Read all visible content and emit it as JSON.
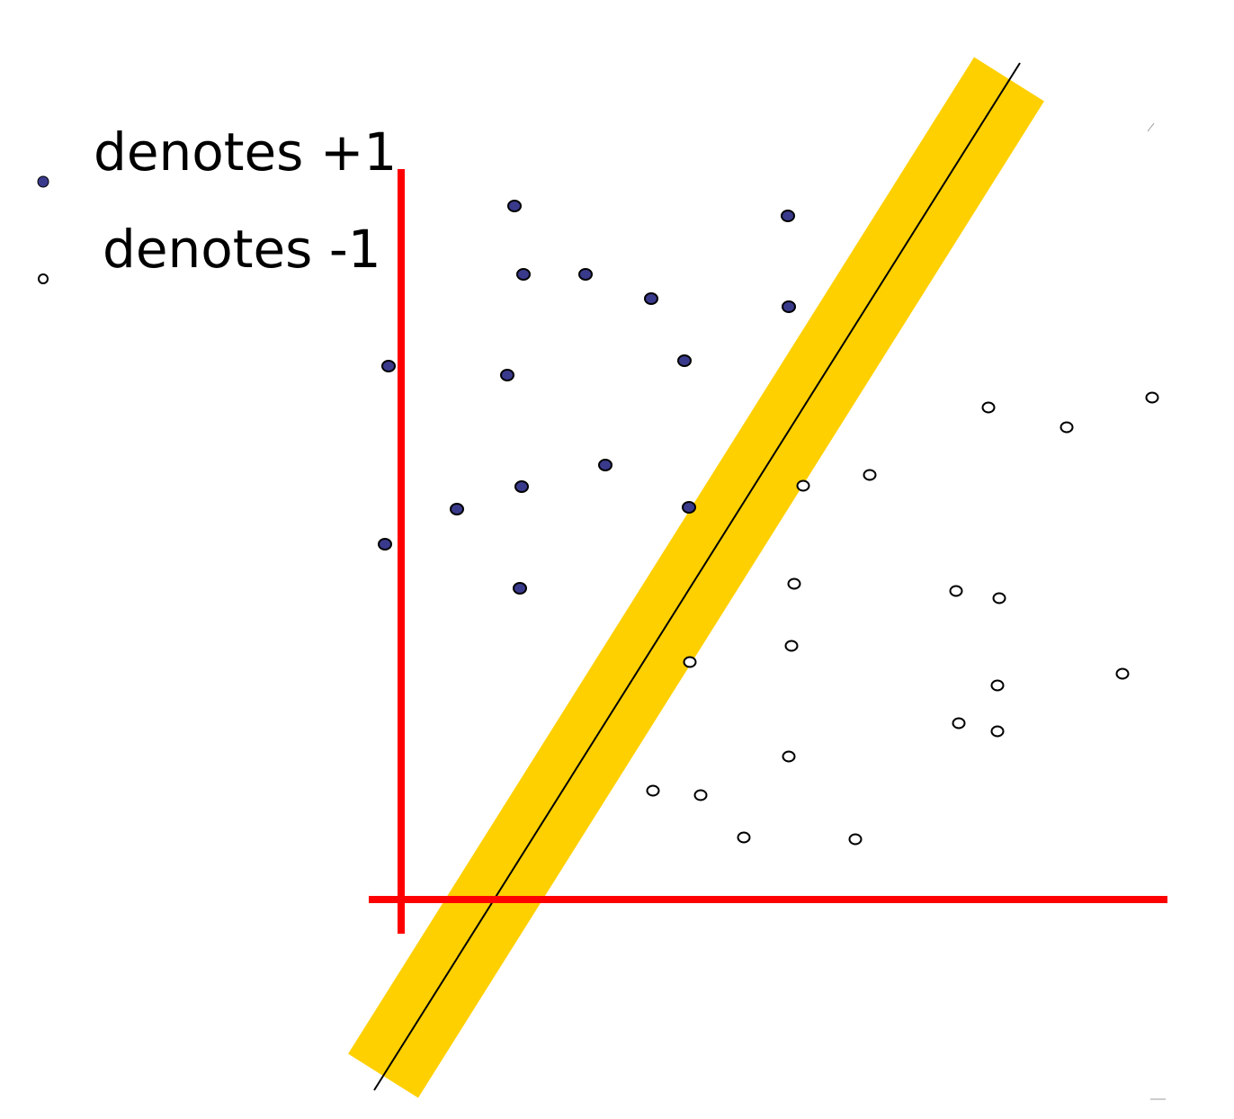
{
  "legend": {
    "positive_label": "denotes +1",
    "negative_label": "denotes -1"
  },
  "colors": {
    "axis": "#ff0000",
    "margin_band": "#ffd000",
    "boundary_line": "#000000",
    "positive_fill": "#3a3a8c",
    "negative_fill": "#ffffff",
    "point_stroke": "#000000"
  },
  "chart_data": {
    "type": "scatter",
    "title": "",
    "xlabel": "",
    "ylabel": "",
    "series": [
      {
        "name": "denotes +1",
        "points": [
          [
            572,
            229
          ],
          [
            876,
            240
          ],
          [
            582,
            305
          ],
          [
            651,
            305
          ],
          [
            724,
            332
          ],
          [
            877,
            341
          ],
          [
            432,
            407
          ],
          [
            564,
            417
          ],
          [
            761,
            401
          ],
          [
            673,
            517
          ],
          [
            580,
            541
          ],
          [
            508,
            566
          ],
          [
            766,
            564
          ],
          [
            428,
            605
          ],
          [
            578,
            654
          ]
        ]
      },
      {
        "name": "denotes -1",
        "points": [
          [
            1099,
            453
          ],
          [
            1186,
            475
          ],
          [
            1281,
            442
          ],
          [
            967,
            528
          ],
          [
            893,
            540
          ],
          [
            883,
            649
          ],
          [
            1063,
            657
          ],
          [
            1111,
            665
          ],
          [
            880,
            718
          ],
          [
            767,
            736
          ],
          [
            1248,
            749
          ],
          [
            1109,
            762
          ],
          [
            1066,
            804
          ],
          [
            1109,
            813
          ],
          [
            877,
            841
          ],
          [
            726,
            879
          ],
          [
            779,
            884
          ],
          [
            827,
            931
          ],
          [
            951,
            933
          ]
        ]
      }
    ],
    "separator": {
      "from": [
        416,
        1212
      ],
      "to": [
        1134,
        70
      ]
    },
    "margin_band": {
      "from": [
        426,
        1196
      ],
      "to": [
        1122,
        88
      ]
    }
  }
}
